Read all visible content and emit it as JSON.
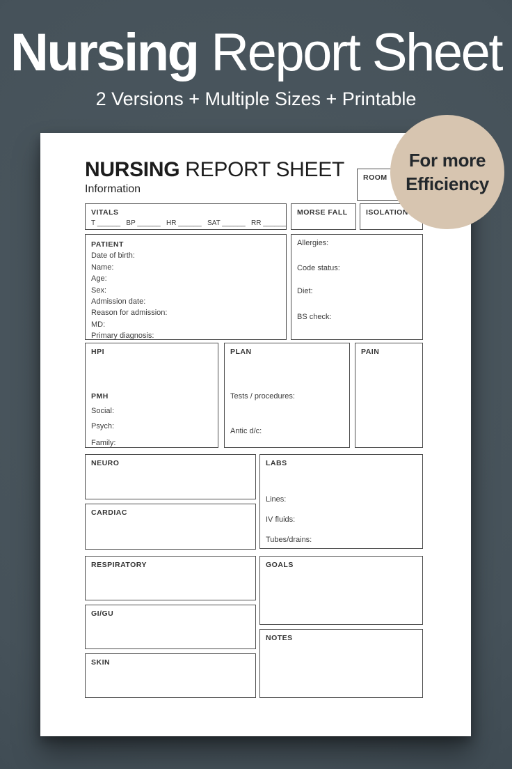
{
  "colors": {
    "background": "#46525a",
    "badge": "#d7c5b0",
    "paper": "#ffffff",
    "ink": "#2e2e2e",
    "border": "#4d4d4d",
    "headline": "#ffffff",
    "badge_ink": "#23282c"
  },
  "header": {
    "title_bold": "Nursing",
    "title_rest": " Report Sheet",
    "subtitle": "2 Versions + Multiple Sizes + Printable"
  },
  "badge": {
    "line1": "For more",
    "line2": "Efficiency"
  },
  "form": {
    "title_bold": "NURSING",
    "title_rest": " REPORT SHEET",
    "subtitle": "Information",
    "room": {
      "label": "ROOM"
    },
    "vitals": {
      "label": "VITALS",
      "line": "T ______   BP ______   HR ______   SAT ______   RR ______"
    },
    "morse_fall": {
      "label": "MORSE FALL"
    },
    "isolation": {
      "label": "ISOLATION"
    },
    "patient": {
      "label": "PATIENT",
      "fields": [
        "Date of birth:",
        "Name:",
        "Age:",
        "Sex:",
        "Admission date:",
        "Reason for admission:",
        "MD:",
        "Primary diagnosis:"
      ]
    },
    "clinical": {
      "fields": [
        "Allergies:",
        "Code status:",
        "Diet:",
        "BS check:"
      ]
    },
    "hpi": {
      "label": "HPI",
      "pmh_label": "PMH",
      "fields": [
        "Social:",
        "Psych:",
        "Family:"
      ]
    },
    "plan": {
      "label": "PLAN",
      "tests_label": "Tests / procedures:",
      "antic_label": "Antic d/c:"
    },
    "pain": {
      "label": "PAIN"
    },
    "neuro": {
      "label": "NEURO"
    },
    "cardiac": {
      "label": "CARDIAC"
    },
    "respiratory": {
      "label": "RESPIRATORY"
    },
    "gigu": {
      "label": "GI/GU"
    },
    "skin": {
      "label": "SKIN"
    },
    "labs": {
      "label": "LABS",
      "fields": [
        "Lines:",
        "IV fluids:",
        "Tubes/drains:"
      ]
    },
    "goals": {
      "label": "GOALS"
    },
    "notes": {
      "label": "NOTES"
    }
  }
}
